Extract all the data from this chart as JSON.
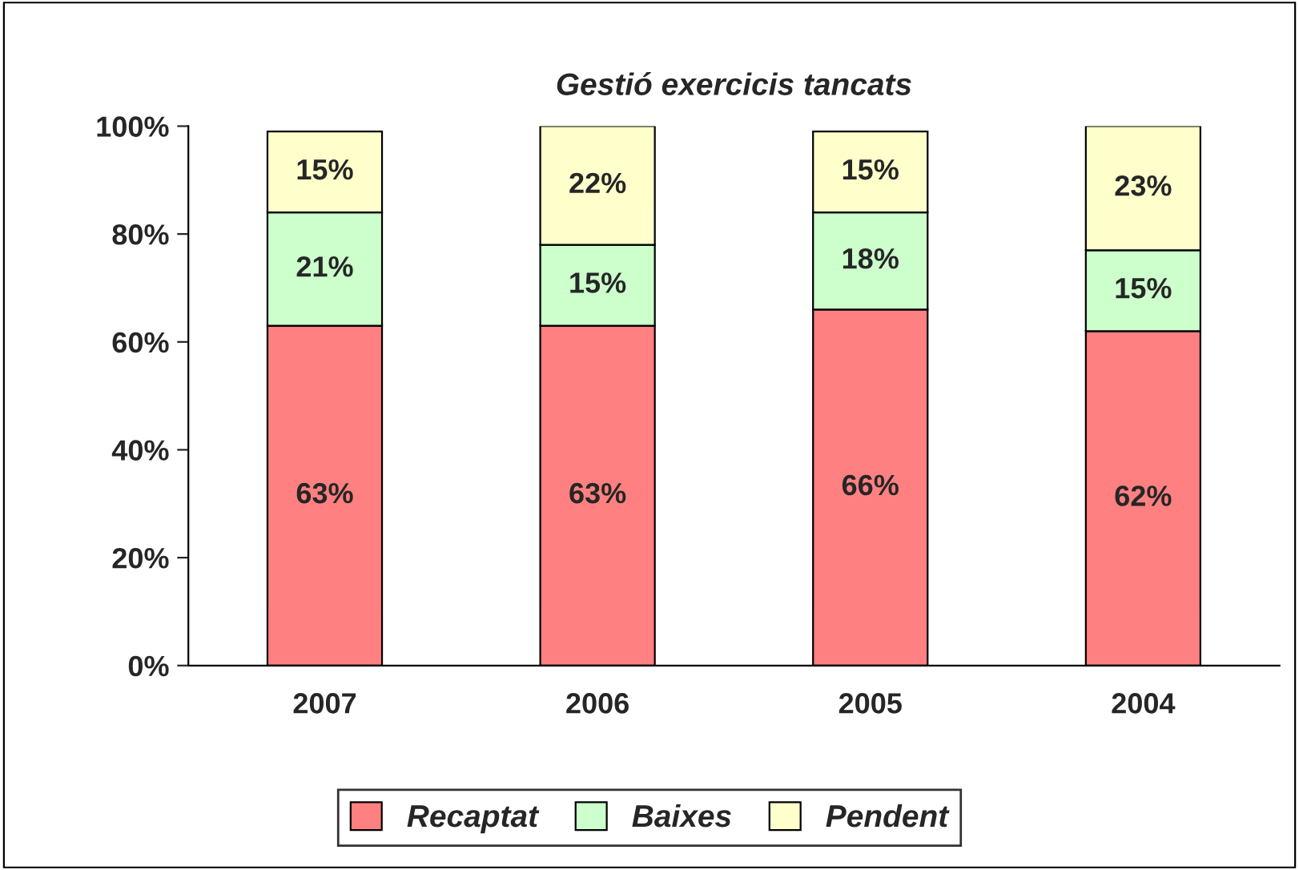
{
  "chart_data": {
    "type": "bar",
    "title": "Gestió exercicis tancats",
    "stacked": true,
    "categories": [
      "2007",
      "2006",
      "2005",
      "2004"
    ],
    "series": [
      {
        "name": "Recaptat",
        "color": "#ff8080",
        "values": [
          63,
          63,
          66,
          62
        ],
        "value_labels": [
          "63%",
          "63%",
          "66%",
          "62%"
        ]
      },
      {
        "name": "Baixes",
        "color": "#ccffcc",
        "values": [
          21,
          15,
          18,
          15
        ],
        "value_labels": [
          "21%",
          "15%",
          "18%",
          "15%"
        ]
      },
      {
        "name": "Pendent",
        "color": "#ffffcc",
        "values": [
          15,
          22,
          15,
          23
        ],
        "value_labels": [
          "15%",
          "22%",
          "15%",
          "23%"
        ]
      }
    ],
    "ylim": [
      0,
      100
    ],
    "yticks": [
      {
        "value": 0,
        "label": "0%"
      },
      {
        "value": 20,
        "label": "20%"
      },
      {
        "value": 40,
        "label": "40%"
      },
      {
        "value": 60,
        "label": "60%"
      },
      {
        "value": 80,
        "label": "80%"
      },
      {
        "value": 100,
        "label": "100%"
      }
    ],
    "grid": false,
    "legend": "bottom"
  }
}
